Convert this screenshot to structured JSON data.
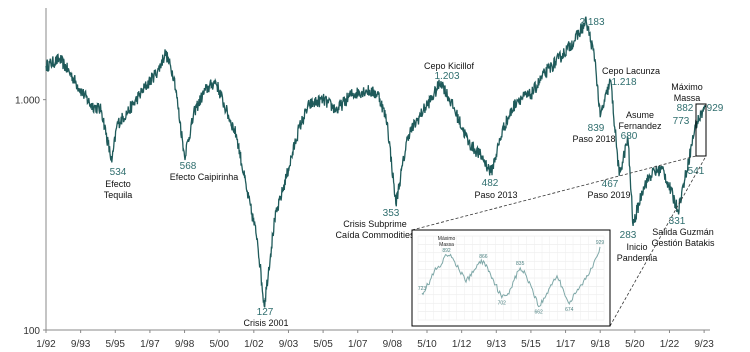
{
  "chart_data": {
    "type": "line",
    "title": "",
    "xlabel": "",
    "ylabel": "",
    "scale": "log",
    "ylim": [
      100,
      2500
    ],
    "grid": false,
    "legend": "none",
    "colors": {
      "line": "#1f5a5a",
      "value_text": "#2f6e6e",
      "inset_line": "#7fa8a8"
    },
    "x_ticks": [
      "1/92",
      "9/93",
      "5/95",
      "1/97",
      "9/98",
      "5/00",
      "1/02",
      "9/03",
      "5/05",
      "1/07",
      "9/08",
      "5/10",
      "1/12",
      "9/13",
      "5/15",
      "1/17",
      "9/18",
      "5/20",
      "1/22",
      "9/23"
    ],
    "y_ticks": [
      {
        "value": 100,
        "label": "100"
      },
      {
        "value": 1000,
        "label": "1.000"
      }
    ],
    "series": [
      {
        "points": [
          [
            "1992-01",
            1400
          ],
          [
            "1992-09",
            1500
          ],
          [
            "1993-03",
            1300
          ],
          [
            "1993-09",
            1100
          ],
          [
            "1994-03",
            950
          ],
          [
            "1994-09",
            900
          ],
          [
            "1995-03",
            534
          ],
          [
            "1995-06",
            780
          ],
          [
            "1996-01",
            900
          ],
          [
            "1996-09",
            1100
          ],
          [
            "1997-06",
            1350
          ],
          [
            "1997-10",
            1600
          ],
          [
            "1998-03",
            1250
          ],
          [
            "1998-09",
            568
          ],
          [
            "1999-03",
            900
          ],
          [
            "1999-09",
            1100
          ],
          [
            "2000-03",
            1200
          ],
          [
            "2000-09",
            900
          ],
          [
            "2001-03",
            700
          ],
          [
            "2001-09",
            400
          ],
          [
            "2002-03",
            250
          ],
          [
            "2002-07",
            127
          ],
          [
            "2003-01",
            300
          ],
          [
            "2003-09",
            500
          ],
          [
            "2004-03",
            750
          ],
          [
            "2004-09",
            950
          ],
          [
            "2005-05",
            1000
          ],
          [
            "2006-01",
            900
          ],
          [
            "2006-09",
            1050
          ],
          [
            "2007-06",
            1100
          ],
          [
            "2008-01",
            1050
          ],
          [
            "2008-06",
            800
          ],
          [
            "2008-11",
            353
          ],
          [
            "2009-06",
            700
          ],
          [
            "2010-03",
            900
          ],
          [
            "2010-09",
            1050
          ],
          [
            "2011-01",
            1203
          ],
          [
            "2011-09",
            900
          ],
          [
            "2012-05",
            650
          ],
          [
            "2013-01",
            560
          ],
          [
            "2013-06",
            482
          ],
          [
            "2014-01",
            750
          ],
          [
            "2014-09",
            1000
          ],
          [
            "2015-05",
            1050
          ],
          [
            "2016-01",
            1300
          ],
          [
            "2016-09",
            1500
          ],
          [
            "2017-06",
            1800
          ],
          [
            "2018-01",
            2183
          ],
          [
            "2018-06",
            1500
          ],
          [
            "2018-09",
            839
          ],
          [
            "2019-03",
            1218
          ],
          [
            "2019-08",
            467
          ],
          [
            "2020-01",
            680
          ],
          [
            "2020-04",
            283
          ],
          [
            "2020-10",
            420
          ],
          [
            "2021-03",
            480
          ],
          [
            "2021-09",
            500
          ],
          [
            "2022-06",
            331
          ],
          [
            "2022-12",
            541
          ],
          [
            "2023-04",
            773
          ],
          [
            "2023-08",
            882
          ],
          [
            "2023-10",
            929
          ]
        ]
      }
    ],
    "annotations": [
      {
        "value": "534",
        "label": "Efecto\nTequila"
      },
      {
        "value": "568",
        "label": "Efecto Caipirinha"
      },
      {
        "value": "127",
        "label": "Crisis 2001"
      },
      {
        "value": "353",
        "label": "Crisis Subprime\nCaída Commodities"
      },
      {
        "value": "1.203",
        "label": "Cepo Kicillof"
      },
      {
        "value": "482",
        "label": "Paso 2013"
      },
      {
        "value": "2.183",
        "label": ""
      },
      {
        "value": "839",
        "label": "Paso 2018"
      },
      {
        "value": "1.218",
        "label": "Cepo Lacunza"
      },
      {
        "value": "467",
        "label": "Paso 2019"
      },
      {
        "value": "680",
        "label": "Asume\nFernandez"
      },
      {
        "value": "283",
        "label": "Inicio\nPandemia"
      },
      {
        "value": "331",
        "label": "Salida Guzmán\nGestión Batakis"
      },
      {
        "value": "773",
        "label": ""
      },
      {
        "value": "882",
        "label": "Máximo\nMassa"
      },
      {
        "value": "929",
        "label": ""
      },
      {
        "value": "541",
        "label": ""
      }
    ],
    "inset": {
      "points": [
        723,
        760,
        820,
        840,
        892,
        880,
        830,
        780,
        800,
        850,
        866,
        820,
        760,
        702,
        720,
        780,
        835,
        800,
        740,
        662,
        700,
        760,
        800,
        740,
        674,
        720,
        760,
        800,
        860,
        929
      ],
      "labels": [
        {
          "value": "723",
          "label": ""
        },
        {
          "value": "892",
          "label": "Máximo\nMassa"
        },
        {
          "value": "866",
          "label": ""
        },
        {
          "value": "702",
          "label": ""
        },
        {
          "value": "835",
          "label": ""
        },
        {
          "value": "662",
          "label": ""
        },
        {
          "value": "674",
          "label": ""
        },
        {
          "value": "929",
          "label": ""
        }
      ]
    }
  }
}
